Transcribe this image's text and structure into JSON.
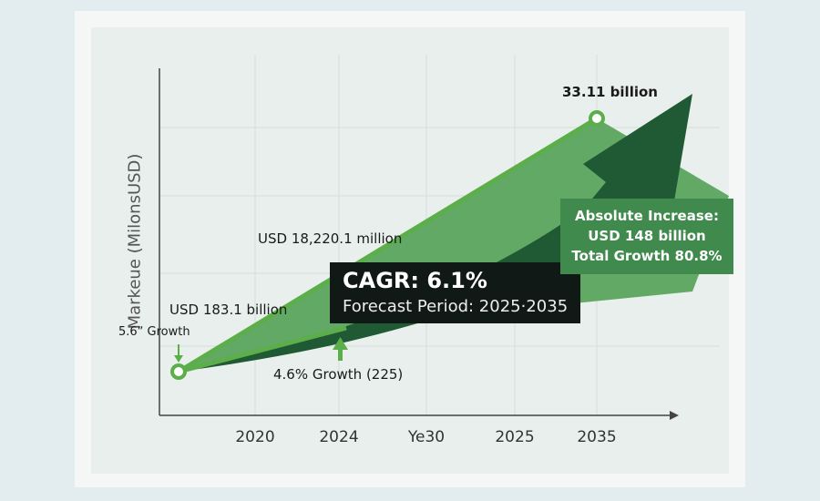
{
  "chart_data": {
    "type": "line",
    "title": "",
    "xlabel": "",
    "ylabel": "Markeue (MilonsUSD)",
    "x_ticks": [
      "2020",
      "2024",
      "Ye30",
      "2025",
      "2035"
    ],
    "grid": true,
    "annotations": {
      "end_value": "33.11 billion",
      "mid_value": "USD 18,220.1 million",
      "start_value": "USD 183.1 billion",
      "start_growth": "5.6ˮ Growth",
      "mid_growth": "4.6% Growth (225)",
      "cagr": "CAGR: 6.1%",
      "forecast": "Forecast Period: 2025·2035",
      "abs_title": "Absolute Increase:",
      "abs_value": "USD 148 billion",
      "abs_growth": "Total Growth 80.8%"
    },
    "colors": {
      "line": "#5cae4a",
      "arrow": "#1f5a34",
      "area": "#62a965",
      "box": "#3f8a4c",
      "cagr_box": "#101915"
    }
  }
}
